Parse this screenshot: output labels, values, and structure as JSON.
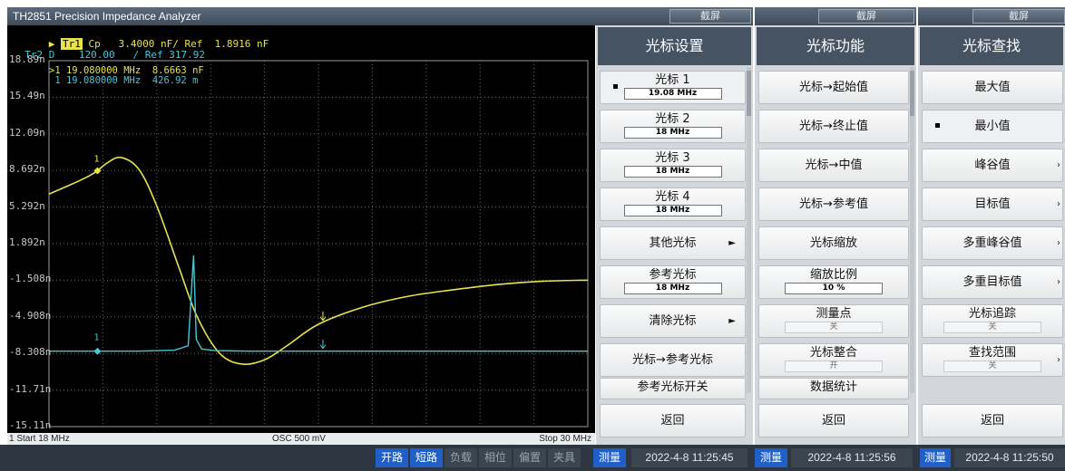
{
  "window": {
    "title": "TH2851 Precision Impedance Analyzer",
    "screenshot_label": "截屏"
  },
  "trace": {
    "tr1": {
      "name": "Tr1",
      "param": "Cp",
      "scale": "3.4000",
      "unit_ref": "nF/ Ref",
      "ref": "1.8916 nF"
    },
    "tr2": {
      "name": "Tr2",
      "param": "D",
      "scale": "120.00",
      "unit_ref": "/ Ref",
      "ref": "317.92"
    },
    "marker_readout": [
      {
        "id": ">1",
        "freq": "19.080000 MHz",
        "value": "8.6663 nF"
      },
      {
        "id": "1",
        "freq": "19.080000 MHz",
        "value": "426.92 m"
      }
    ],
    "marker_labels": {
      "tr1": "1",
      "tr2": "1"
    }
  },
  "chart_data": {
    "type": "line",
    "y_tick_labels": [
      "18.89n",
      "15.49n",
      "12.09n",
      "8.692n",
      "5.292n",
      "1.892n",
      "-1.508n",
      "-4.908n",
      "-8.308n",
      "-11.71n",
      "-15.11n"
    ],
    "xlim": [
      18,
      30
    ],
    "x_unit": "MHz",
    "series": [
      {
        "name": "Tr1",
        "color": "#e8e34a",
        "x": [
          18.0,
          18.5,
          18.9,
          19.08,
          19.3,
          19.6,
          20.0,
          20.4,
          20.9,
          21.3,
          21.8,
          22.3,
          22.8,
          23.3,
          24.0,
          25.0,
          26.0,
          27.0,
          28.0,
          29.0,
          30.0
        ],
        "y": [
          6.5,
          7.4,
          8.2,
          8.67,
          9.4,
          9.9,
          8.8,
          5.4,
          -0.4,
          -4.9,
          -8.3,
          -9.3,
          -8.9,
          -7.6,
          -5.6,
          -4.0,
          -3.0,
          -2.4,
          -1.9,
          -1.6,
          -1.5
        ]
      },
      {
        "name": "Tr2",
        "color": "#46c6d6",
        "x": [
          18.0,
          19.08,
          20.0,
          20.8,
          21.1,
          21.22,
          21.28,
          21.4,
          21.7,
          22.5,
          24.0,
          26.0,
          28.0,
          30.0
        ],
        "y": [
          -8.1,
          -8.1,
          -8.1,
          -8.0,
          -7.6,
          0.8,
          -7.0,
          -7.9,
          -8.05,
          -8.1,
          -8.1,
          -8.1,
          -8.1,
          -8.1
        ]
      }
    ]
  },
  "status": {
    "start": "1  Start 18 MHz",
    "osc": "OSC 500 mV",
    "stop": "Stop  30 MHz"
  },
  "taskbar": {
    "buttons": [
      "开路",
      "短路",
      "负载",
      "相位",
      "偏置",
      "夹具",
      "测量"
    ],
    "time1": "2022-4-8 11:25:45",
    "measure": "测量",
    "time2": "2022-4-8 11:25:56",
    "time3": "2022-4-8 11:25:50"
  },
  "panel1": {
    "title": "光标设置",
    "keys": [
      {
        "label": "光标 1",
        "value": "19.08 MHz"
      },
      {
        "label": "光标 2",
        "value": "18 MHz"
      },
      {
        "label": "光标 3",
        "value": "18 MHz"
      },
      {
        "label": "光标 4",
        "value": "18 MHz"
      },
      {
        "label": "其他光标"
      },
      {
        "label": "参考光标",
        "value": "18 MHz"
      },
      {
        "label": "清除光标"
      },
      {
        "label": "光标→参考光标"
      },
      {
        "label": "参考光标开关"
      },
      {
        "label": "返回"
      }
    ]
  },
  "panel2": {
    "title": "光标功能",
    "keys": [
      {
        "label": "光标→起始值"
      },
      {
        "label": "光标→终止值"
      },
      {
        "label": "光标→中值"
      },
      {
        "label": "光标→参考值"
      },
      {
        "label": "光标缩放"
      },
      {
        "label": "缩放比例",
        "value": "10 %"
      },
      {
        "label": "测量点",
        "value": "关"
      },
      {
        "label": "光标整合",
        "value": "开"
      },
      {
        "label": "数据统计"
      },
      {
        "label": "返回"
      }
    ]
  },
  "panel3": {
    "title": "光标查找",
    "keys": [
      {
        "label": "最大值"
      },
      {
        "label": "最小值"
      },
      {
        "label": "峰谷值"
      },
      {
        "label": "目标值"
      },
      {
        "label": "多重峰谷值"
      },
      {
        "label": "多重目标值"
      },
      {
        "label": "光标追踪",
        "value": "关"
      },
      {
        "label": "查找范围",
        "value": "关"
      },
      {
        "label": "返回"
      }
    ]
  }
}
